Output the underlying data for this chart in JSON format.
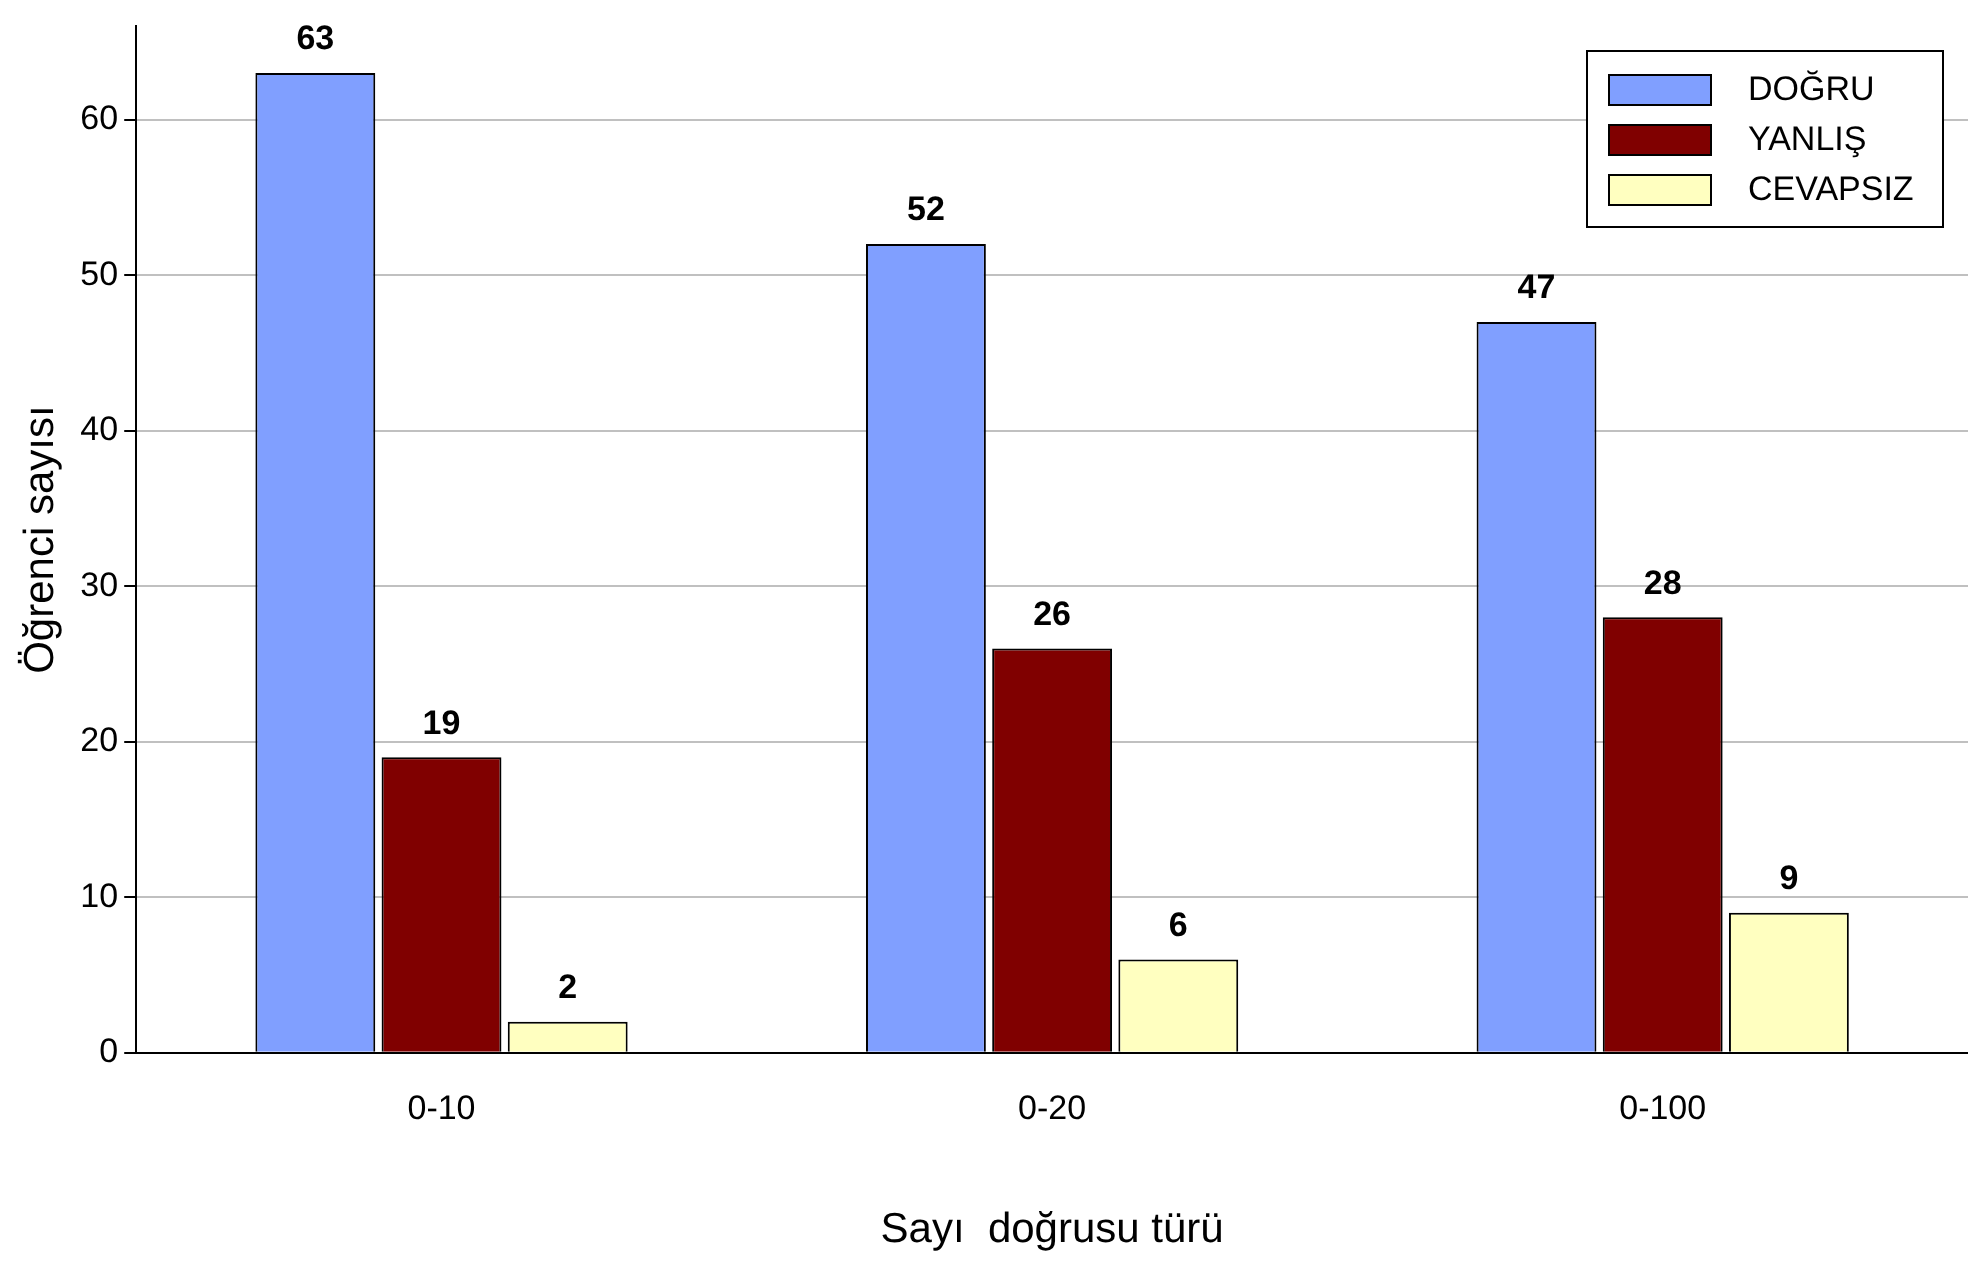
{
  "chart_data": {
    "type": "bar",
    "xlabel": "Sayı  doğrusu türü",
    "ylabel": "Öğrenci sayısı",
    "categories": [
      "0-10",
      "0-20",
      "0-100"
    ],
    "series": [
      {
        "name": "DOĞRU",
        "color": "#809fff",
        "values": [
          63,
          52,
          47
        ]
      },
      {
        "name": "YANLIŞ",
        "color": "#800000",
        "values": [
          19,
          26,
          28
        ]
      },
      {
        "name": "CEVAPSIZ",
        "color": "#ffffc0",
        "values": [
          2,
          6,
          9
        ]
      }
    ],
    "ylim": [
      0,
      66
    ],
    "yticks": [
      0,
      10,
      20,
      30,
      40,
      50,
      60
    ],
    "grid": "y",
    "legend": "top right",
    "data_labels": true
  }
}
